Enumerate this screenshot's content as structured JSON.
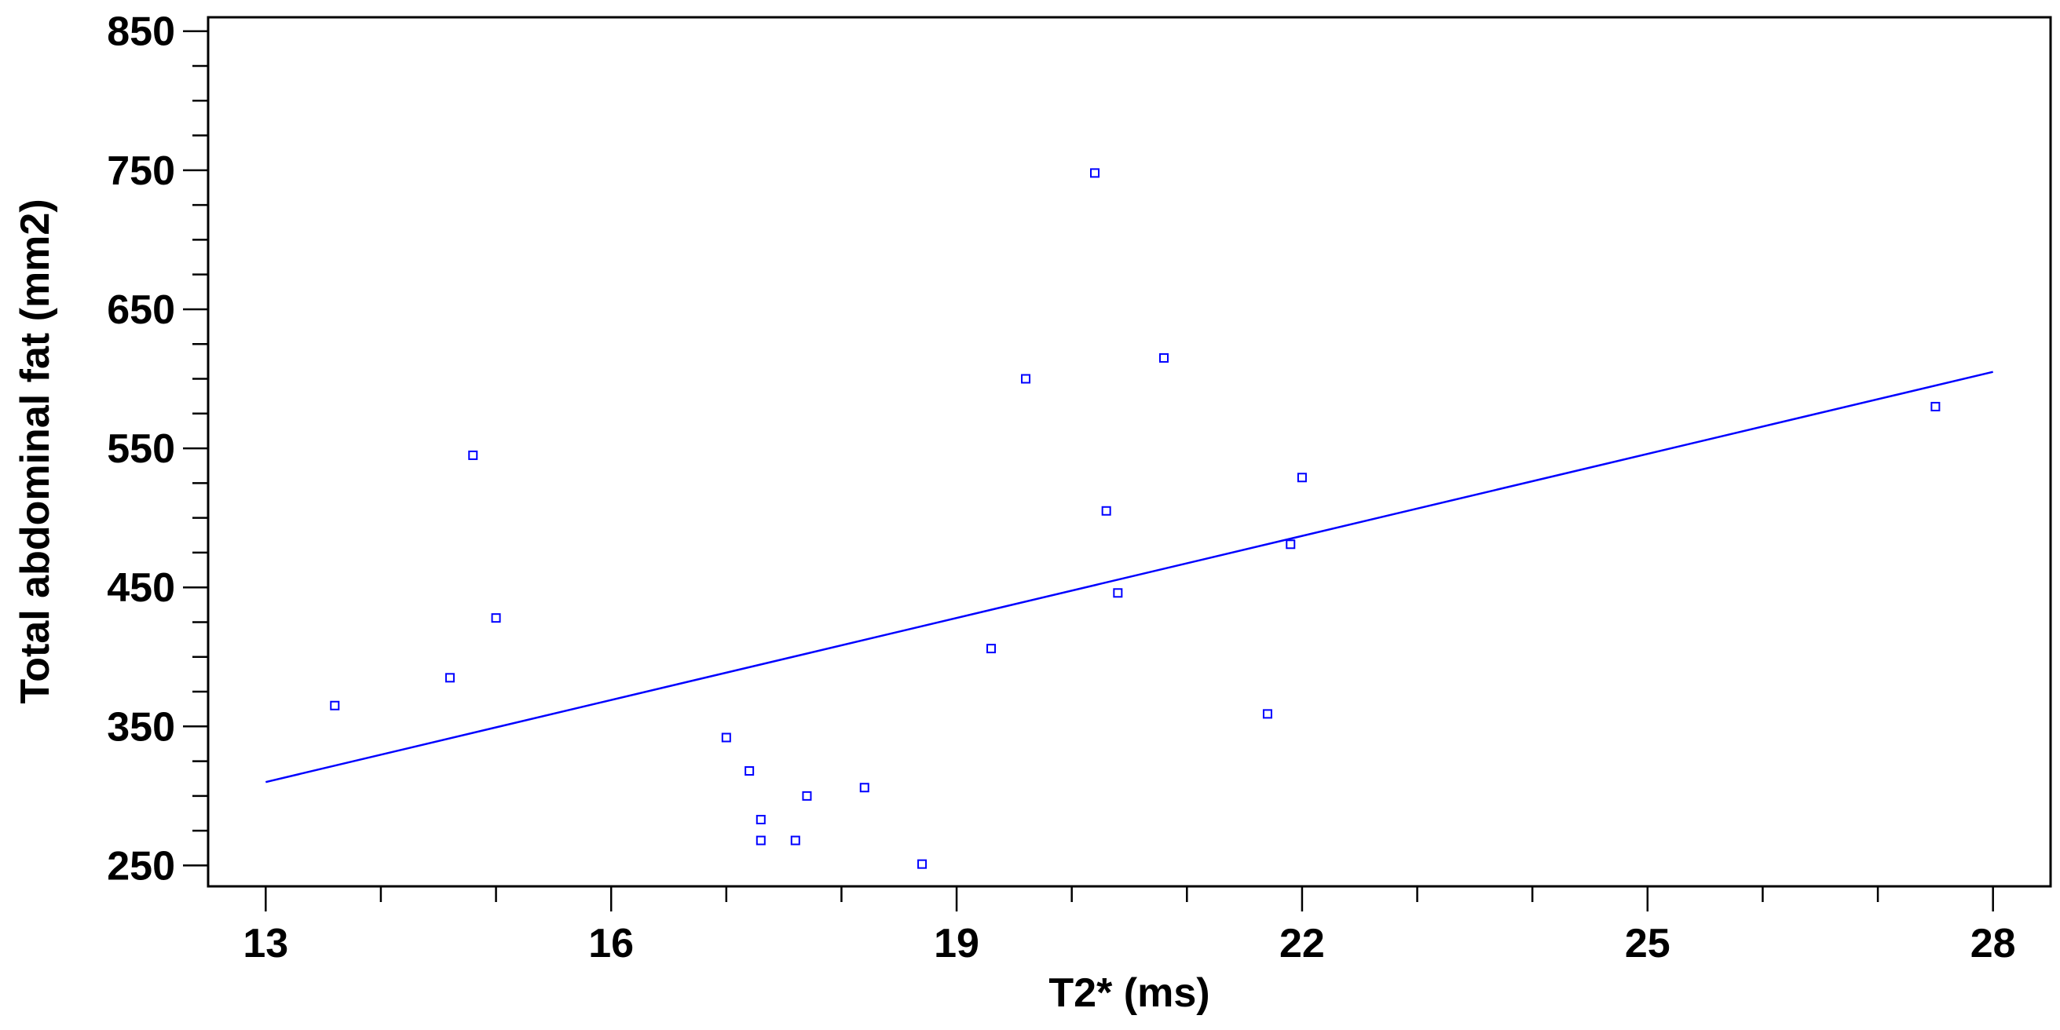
{
  "chart_data": {
    "type": "scatter",
    "xlabel": "T2* (ms)",
    "ylabel": "Total abdominal fat (mm2)",
    "xlim": [
      12.5,
      28.5
    ],
    "ylim": [
      235,
      860
    ],
    "x_ticks": [
      13,
      16,
      19,
      22,
      25,
      28
    ],
    "y_ticks": [
      250,
      350,
      450,
      550,
      650,
      750,
      850
    ],
    "x_minor_step": 1,
    "y_minor_step": 25,
    "grid": false,
    "marker_color": "#0000ff",
    "points": [
      {
        "x": 13.6,
        "y": 365
      },
      {
        "x": 14.6,
        "y": 385
      },
      {
        "x": 14.8,
        "y": 545
      },
      {
        "x": 15.0,
        "y": 428
      },
      {
        "x": 17.0,
        "y": 342
      },
      {
        "x": 17.2,
        "y": 318
      },
      {
        "x": 17.3,
        "y": 283
      },
      {
        "x": 17.3,
        "y": 268
      },
      {
        "x": 17.6,
        "y": 268
      },
      {
        "x": 17.7,
        "y": 300
      },
      {
        "x": 18.2,
        "y": 306
      },
      {
        "x": 18.7,
        "y": 251
      },
      {
        "x": 19.3,
        "y": 406
      },
      {
        "x": 19.6,
        "y": 600
      },
      {
        "x": 20.2,
        "y": 748
      },
      {
        "x": 20.3,
        "y": 505
      },
      {
        "x": 20.4,
        "y": 446
      },
      {
        "x": 20.8,
        "y": 615
      },
      {
        "x": 21.7,
        "y": 359
      },
      {
        "x": 21.9,
        "y": 481
      },
      {
        "x": 22.0,
        "y": 529
      },
      {
        "x": 27.5,
        "y": 580
      }
    ],
    "fit_line": {
      "x": [
        13,
        28
      ],
      "y": [
        310,
        605
      ]
    }
  }
}
